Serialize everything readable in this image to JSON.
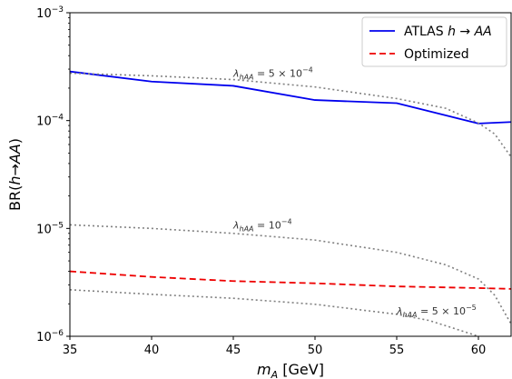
{
  "chart_data": {
    "type": "line",
    "x_axis": {
      "label_var": "m",
      "label_sub": "A",
      "label_unit": "[GeV]",
      "range": [
        35,
        62
      ],
      "ticks": [
        35,
        40,
        45,
        50,
        55,
        60
      ]
    },
    "y_axis": {
      "label_pre": "BR(",
      "label_h": "h",
      "label_arrow": "→",
      "label_A": "AA",
      "label_post": ")",
      "scale": "log",
      "range": [
        1e-06,
        0.001
      ],
      "ticks": [
        {
          "value": 1e-06,
          "base": "10",
          "exp": "−6"
        },
        {
          "value": 1e-05,
          "base": "10",
          "exp": "−5"
        },
        {
          "value": 0.0001,
          "base": "10",
          "exp": "−4"
        },
        {
          "value": 0.001,
          "base": "10",
          "exp": "−3"
        }
      ]
    },
    "legend": {
      "position": "top-right",
      "entries": [
        {
          "series": "atlas",
          "text_pre": "ATLAS ",
          "text_math": "h → AA"
        },
        {
          "series": "optimized",
          "text_pre": "Optimized",
          "text_math": ""
        }
      ]
    },
    "series": [
      {
        "key": "atlas",
        "name": "ATLAS h→AA",
        "color": "#0000ee",
        "style": "solid",
        "x": [
          35,
          40,
          45,
          50,
          55,
          60,
          62
        ],
        "y": [
          0.000285,
          0.00023,
          0.00021,
          0.000155,
          0.000145,
          9.4e-05,
          9.7e-05
        ]
      },
      {
        "key": "optimized",
        "name": "Optimized",
        "color": "#ee0000",
        "style": "dashed",
        "x": [
          35,
          40,
          45,
          50,
          55,
          60,
          62
        ],
        "y": [
          4e-06,
          3.55e-06,
          3.25e-06,
          3.1e-06,
          2.9e-06,
          2.8e-06,
          2.75e-06
        ]
      },
      {
        "key": "lam_5e-4",
        "color": "#808080",
        "style": "dotted",
        "x": [
          35,
          40,
          45,
          50,
          55,
          58,
          60,
          61,
          62
        ],
        "y": [
          0.000275,
          0.00026,
          0.00024,
          0.000205,
          0.00016,
          0.00013,
          9.5e-05,
          7.5e-05,
          4.6e-05
        ]
      },
      {
        "key": "lam_1e-4",
        "color": "#808080",
        "style": "dotted",
        "x": [
          35,
          40,
          45,
          50,
          55,
          58,
          60,
          61,
          62
        ],
        "y": [
          1.08e-05,
          1e-05,
          9e-06,
          7.8e-06,
          6e-06,
          4.6e-06,
          3.4e-06,
          2.4e-06,
          1.3e-06
        ]
      },
      {
        "key": "lam_5e-5",
        "color": "#808080",
        "style": "dotted",
        "x": [
          35,
          40,
          45,
          50,
          55,
          57,
          59,
          60,
          61
        ],
        "y": [
          2.7e-06,
          2.45e-06,
          2.25e-06,
          1.98e-06,
          1.6e-06,
          1.4e-06,
          1.12e-06,
          1e-06,
          8e-07
        ]
      }
    ],
    "annotations": [
      {
        "sym": "λ",
        "sub": "hAA",
        "eq": " = 5 × 10",
        "exp": "−4",
        "x": 45,
        "y": 0.000255
      },
      {
        "sym": "λ",
        "sub": "hAA",
        "eq": " = 10",
        "exp": "−4",
        "x": 45,
        "y": 1e-05
      },
      {
        "sym": "λ",
        "sub": "hAA",
        "eq": " = 5 × 10",
        "exp": "−5",
        "x": 55,
        "y": 1.6e-06
      }
    ]
  }
}
